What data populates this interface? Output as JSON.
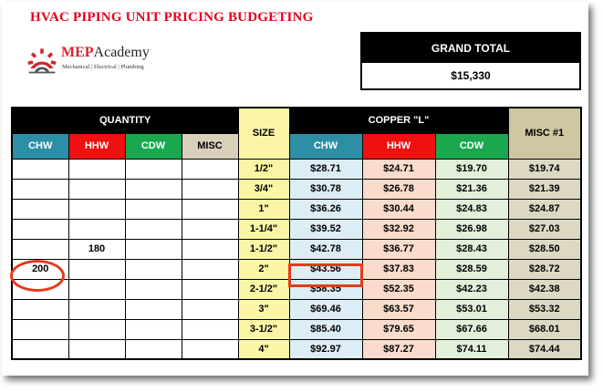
{
  "title": "HVAC PIPING UNIT PRICING BUDGETING",
  "logo": {
    "name_accent": "MEP",
    "name_rest": "Academy",
    "tagline": "Mechanical | Electrical | Plumbing"
  },
  "grand_total": {
    "label": "GRAND TOTAL",
    "value": "$15,330"
  },
  "headers": {
    "quantity": "QUANTITY",
    "size": "SIZE",
    "copper": "COPPER \"L\"",
    "misc1": "MISC #1",
    "qty_cols": [
      "CHW",
      "HHW",
      "CDW",
      "MISC"
    ],
    "copper_cols": [
      "CHW",
      "HHW",
      "CDW"
    ]
  },
  "colors": {
    "chw": "#2c8fa6",
    "hhw": "#ef1010",
    "cdw": "#1aa84e",
    "misc": "#d8d0b9",
    "size": "#fbf6a6",
    "annotation": "#e53a1c",
    "title": "#e3001b"
  },
  "rows": [
    {
      "qty": [
        "",
        "",
        "",
        ""
      ],
      "size": "1/2\"",
      "chw": "$28.71",
      "hhw": "$24.71",
      "cdw": "$19.70",
      "misc": "$19.74"
    },
    {
      "qty": [
        "",
        "",
        "",
        ""
      ],
      "size": "3/4\"",
      "chw": "$30.78",
      "hhw": "$26.78",
      "cdw": "$21.36",
      "misc": "$21.39"
    },
    {
      "qty": [
        "",
        "",
        "",
        ""
      ],
      "size": "1\"",
      "chw": "$36.26",
      "hhw": "$30.44",
      "cdw": "$24.83",
      "misc": "$24.87"
    },
    {
      "qty": [
        "",
        "",
        "",
        ""
      ],
      "size": "1-1/4\"",
      "chw": "$39.52",
      "hhw": "$32.92",
      "cdw": "$26.98",
      "misc": "$27.03"
    },
    {
      "qty": [
        "",
        "180",
        "",
        ""
      ],
      "size": "1-1/2\"",
      "chw": "$42.78",
      "hhw": "$36.77",
      "cdw": "$28.43",
      "misc": "$28.50"
    },
    {
      "qty": [
        "200",
        "",
        "",
        ""
      ],
      "size": "2\"",
      "chw": "$43.56",
      "hhw": "$37.83",
      "cdw": "$28.59",
      "misc": "$28.72"
    },
    {
      "qty": [
        "",
        "",
        "",
        ""
      ],
      "size": "2-1/2\"",
      "chw": "$58.35",
      "hhw": "$52.35",
      "cdw": "$42.23",
      "misc": "$42.38"
    },
    {
      "qty": [
        "",
        "",
        "",
        ""
      ],
      "size": "3\"",
      "chw": "$69.46",
      "hhw": "$63.57",
      "cdw": "$53.01",
      "misc": "$53.32"
    },
    {
      "qty": [
        "",
        "",
        "",
        ""
      ],
      "size": "3-1/2\"",
      "chw": "$85.40",
      "hhw": "$79.65",
      "cdw": "$67.66",
      "misc": "$68.01"
    },
    {
      "qty": [
        "",
        "",
        "",
        ""
      ],
      "size": "4\"",
      "chw": "$92.97",
      "hhw": "$87.27",
      "cdw": "$74.11",
      "misc": "$74.44"
    }
  ]
}
